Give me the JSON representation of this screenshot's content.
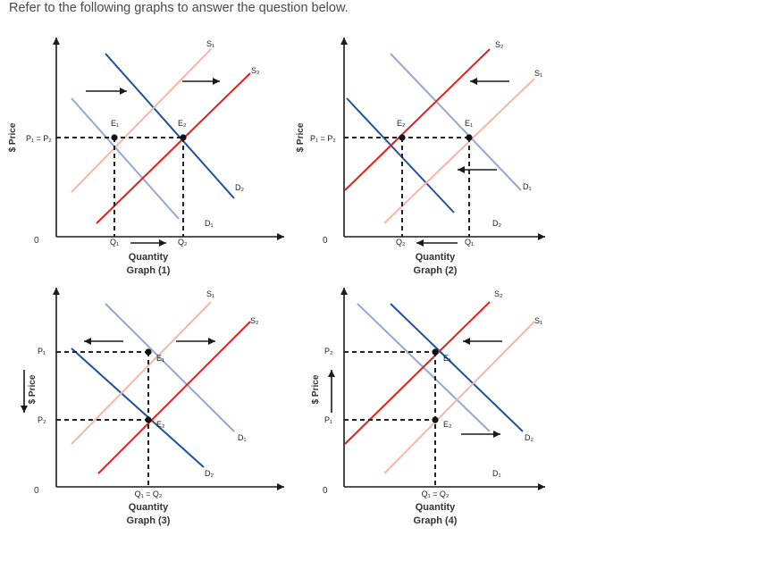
{
  "prompt": "Refer to the following graphs to answer the question below.",
  "cutoff_text": "",
  "colors": {
    "axis": "#1a1a1a",
    "demand_dark": "#1f4fa0",
    "demand_light": "#93a8d4",
    "supply_red": "#e0201c",
    "supply_light": "#f6b7a4",
    "dash": "#222222",
    "point": "#111111"
  },
  "chart_data": [
    {
      "type": "diagram",
      "caption": "Graph (1)",
      "xlabel": "Quantity",
      "ylabel": "$ Price",
      "origin": "0",
      "price_labels": [
        "P₁ = P₂"
      ],
      "quantity_labels": [
        "Q₁",
        "Q₂"
      ],
      "curves": [
        "S₁",
        "S₂",
        "D₁",
        "D₂"
      ],
      "points": [
        "E₁",
        "E₂"
      ],
      "shift": "demand and supply both increase; price unchanged, quantity rises"
    },
    {
      "type": "diagram",
      "caption": "Graph (2)",
      "xlabel": "Quantity",
      "ylabel": "$ Price",
      "origin": "0",
      "price_labels": [
        "P₁ = P₂"
      ],
      "quantity_labels": [
        "Q₂",
        "Q₁"
      ],
      "curves": [
        "S₂",
        "S₁",
        "D₁",
        "D₂"
      ],
      "points": [
        "E₂",
        "E₁"
      ],
      "shift": "demand and supply both decrease; price unchanged, quantity falls"
    },
    {
      "type": "diagram",
      "caption": "Graph (3)",
      "xlabel": "Quantity",
      "ylabel": "$ Price",
      "origin": "0",
      "price_labels": [
        "P₁",
        "P₂"
      ],
      "quantity_labels": [
        "Q₁ = Q₂"
      ],
      "curves": [
        "S₁",
        "S₂",
        "D₁",
        "D₂"
      ],
      "points": [
        "E₁",
        "E₂"
      ],
      "shift": "demand decreases, supply increases; quantity unchanged, price falls"
    },
    {
      "type": "diagram",
      "caption": "Graph (4)",
      "xlabel": "Quantity",
      "ylabel": "$ Price",
      "origin": "0",
      "price_labels": [
        "P₂",
        "P₁"
      ],
      "quantity_labels": [
        "Q₁ = Q₂"
      ],
      "curves": [
        "S₂",
        "S₁",
        "D₂",
        "D₁"
      ],
      "points": [
        "E₁",
        "E₂"
      ],
      "shift": "demand increases, supply decreases; quantity unchanged, price rises"
    }
  ]
}
